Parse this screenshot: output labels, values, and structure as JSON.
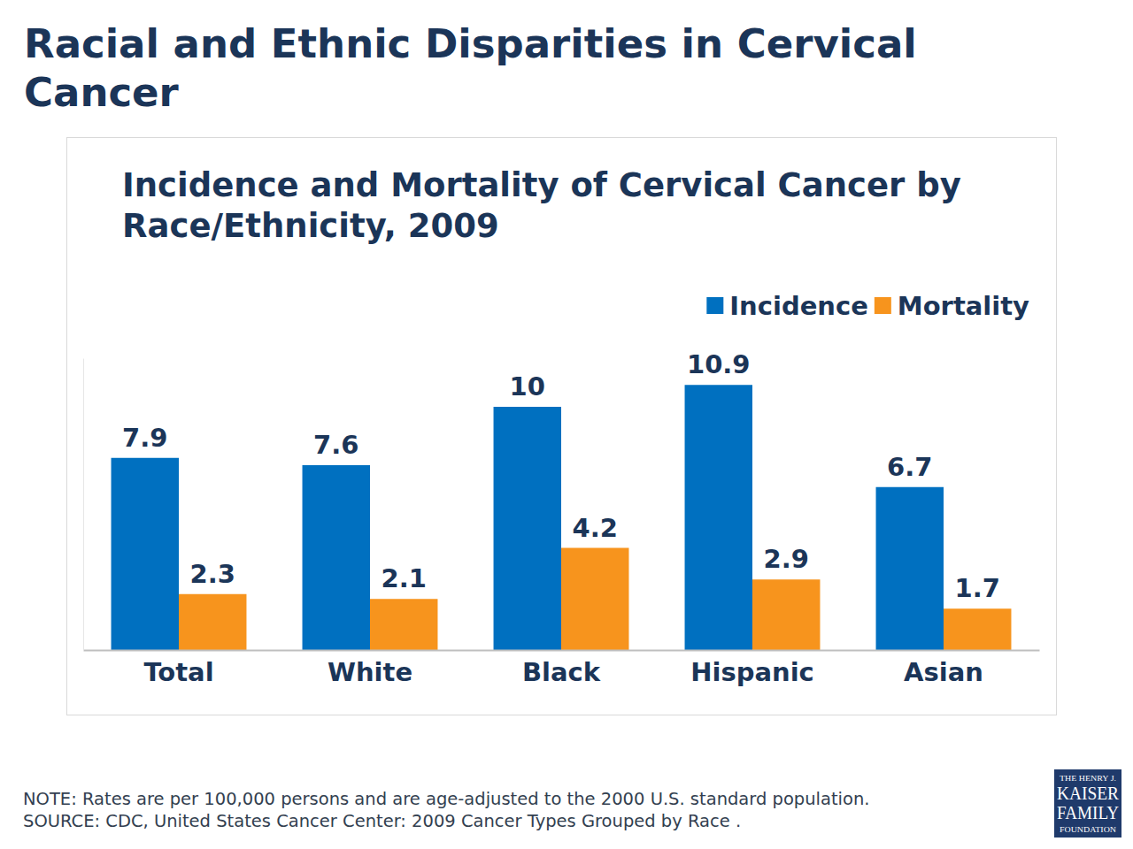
{
  "chart_data": {
    "type": "bar",
    "title": "Incidence and Mortality of Cervical Cancer by Race/Ethnicity, 2009",
    "categories": [
      "Total",
      "White",
      "Black",
      "Hispanic",
      "Asian"
    ],
    "series": [
      {
        "name": "Incidence",
        "color": "#0070C0",
        "values": [
          7.9,
          7.6,
          10,
          10.9,
          6.7
        ]
      },
      {
        "name": "Mortality",
        "color": "#F7941D",
        "values": [
          2.3,
          2.1,
          4.2,
          2.9,
          1.7
        ]
      }
    ],
    "ylim": [
      0,
      12
    ],
    "legend": "top-right",
    "data_labels": true,
    "tick_labels": "x",
    "grid": false,
    "annotations": [
      "Racial and Ethnic Disparities in Cervical Cancer",
      "NOTE: Rates are per 100,000 persons and are age-adjusted to the 2000 U.S. standard population.",
      "SOURCE: CDC, United States Cancer Center: 2009 Cancer Types Grouped by Race .",
      "THE HENRY J.",
      "KAISER",
      "FAMILY",
      "FOUNDATION"
    ]
  }
}
